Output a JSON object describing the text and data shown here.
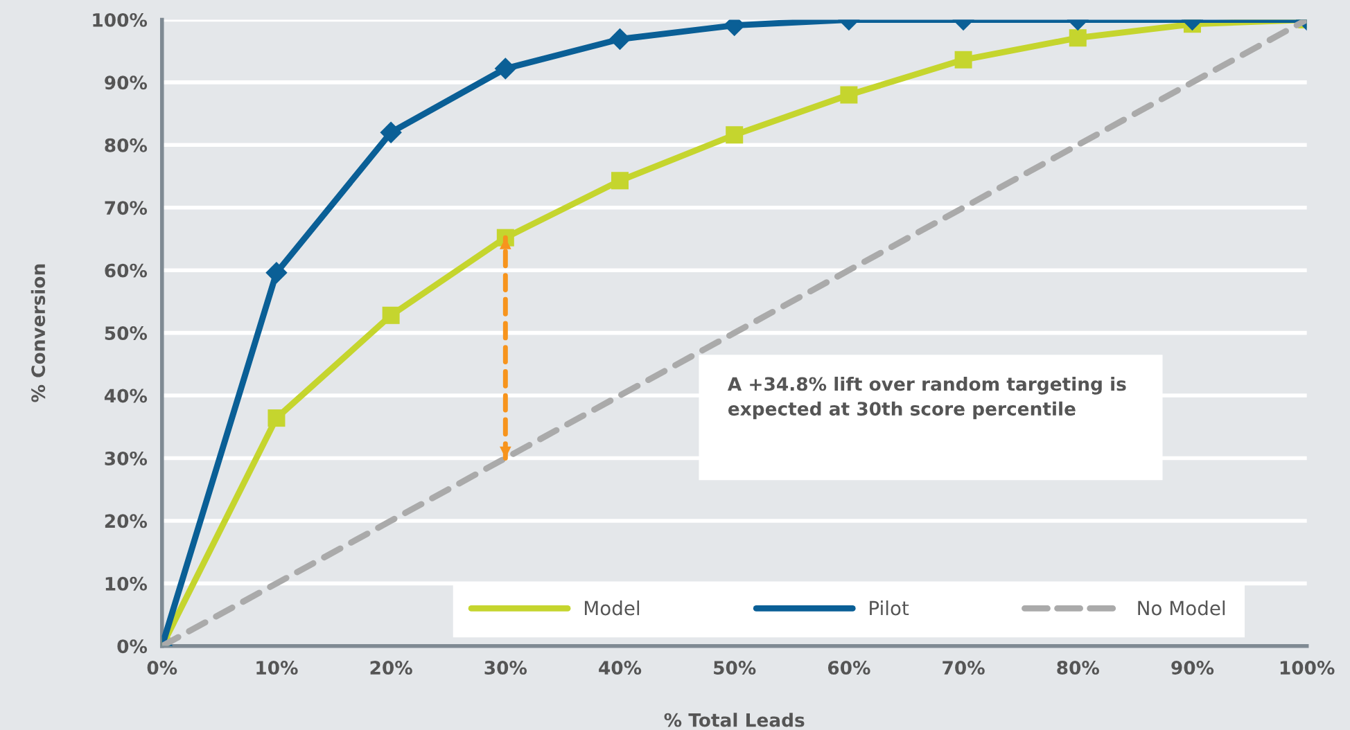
{
  "chart_data": {
    "type": "line",
    "xlabel": "% Total Leads",
    "ylabel": "% Conversion",
    "x": [
      0,
      10,
      20,
      30,
      40,
      50,
      60,
      70,
      80,
      90,
      100
    ],
    "series": [
      {
        "name": "Model",
        "color": "#c5d52e",
        "marker": "square",
        "line_style": "solid",
        "values": [
          0,
          36.4,
          52.8,
          65.2,
          74.3,
          81.6,
          88,
          93.6,
          97.1,
          99.3,
          100
        ]
      },
      {
        "name": "Pilot",
        "color": "#0a5f96",
        "marker": "diamond",
        "line_style": "solid",
        "values": [
          0,
          59.6,
          82,
          92.2,
          96.9,
          99.1,
          100,
          100,
          100,
          100,
          100
        ]
      },
      {
        "name": "No Model",
        "color": "#aaaaaa",
        "marker": "none",
        "line_style": "dashed",
        "values": [
          0,
          10,
          20,
          30,
          40,
          50,
          60,
          70,
          80,
          90,
          100
        ]
      },
      {
        "color": "#f7941d",
        "marker": "none",
        "line_style": "dashed",
        "x": [
          30,
          30
        ],
        "values": [
          30,
          65.2
        ]
      }
    ],
    "annotations": [
      "A +34.8% lift over random targeting is\nexpected at 30th score percentile"
    ],
    "xlim": [
      0,
      100
    ],
    "ylim": [
      0,
      100
    ],
    "xticks": [
      {
        "value": 0,
        "label": "0%"
      },
      {
        "value": 10,
        "label": "10%"
      },
      {
        "value": 20,
        "label": "20%"
      },
      {
        "value": 30,
        "label": "30%"
      },
      {
        "value": 40,
        "label": "40%"
      },
      {
        "value": 50,
        "label": "50%"
      },
      {
        "value": 60,
        "label": "60%"
      },
      {
        "value": 70,
        "label": "70%"
      },
      {
        "value": 80,
        "label": "80%"
      },
      {
        "value": 90,
        "label": "90%"
      },
      {
        "value": 100,
        "label": "100%"
      }
    ],
    "yticks": [
      {
        "value": 0,
        "label": "0%"
      },
      {
        "value": 10,
        "label": "10%"
      },
      {
        "value": 20,
        "label": "20%"
      },
      {
        "value": 30,
        "label": "30%"
      },
      {
        "value": 40,
        "label": "40%"
      },
      {
        "value": 50,
        "label": "50%"
      },
      {
        "value": 60,
        "label": "60%"
      },
      {
        "value": 70,
        "label": "70%"
      },
      {
        "value": 80,
        "label": "80%"
      },
      {
        "value": 90,
        "label": "90%"
      },
      {
        "value": 100,
        "label": "100%"
      }
    ],
    "grid": "y",
    "legend": "bottom"
  }
}
